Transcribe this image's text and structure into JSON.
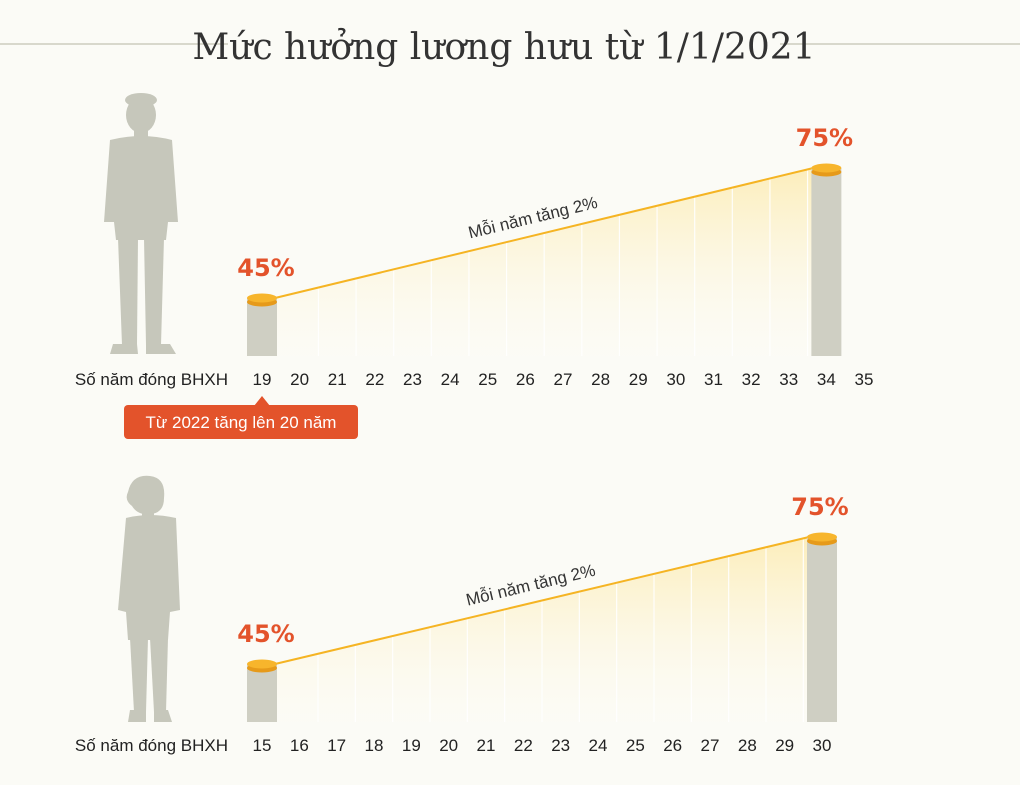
{
  "title": "Mức hưởng lương hưu từ 1/1/2021",
  "colors": {
    "accent": "#e3532b",
    "bar": "#cfcfc3",
    "figure": "#c6c7bb",
    "line": "#f5b423",
    "coin": "#f7b52c"
  },
  "chart_data": [
    {
      "type": "area",
      "figure": "male-silhouette",
      "xlabel": "Số năm đóng BHXH",
      "x": [
        19,
        20,
        21,
        22,
        23,
        24,
        25,
        26,
        27,
        28,
        29,
        30,
        31,
        32,
        33,
        34,
        35
      ],
      "y": [
        45,
        47,
        49,
        51,
        53,
        55,
        57,
        59,
        61,
        63,
        65,
        67,
        69,
        71,
        73,
        75,
        75
      ],
      "start_label": "45%",
      "end_label": "75%",
      "slope_label": "Mỗi năm tăng 2%",
      "note": "Từ 2022 tăng lên 20 năm"
    },
    {
      "type": "area",
      "figure": "female-silhouette",
      "xlabel": "Số năm đóng BHXH",
      "x": [
        15,
        16,
        17,
        18,
        19,
        20,
        21,
        22,
        23,
        24,
        25,
        26,
        27,
        28,
        29,
        30
      ],
      "y": [
        45,
        47,
        49,
        51,
        53,
        55,
        57,
        59,
        61,
        63,
        65,
        67,
        69,
        71,
        73,
        75
      ],
      "start_label": "45%",
      "end_label": "75%",
      "slope_label": "Mỗi năm tăng 2%"
    }
  ]
}
